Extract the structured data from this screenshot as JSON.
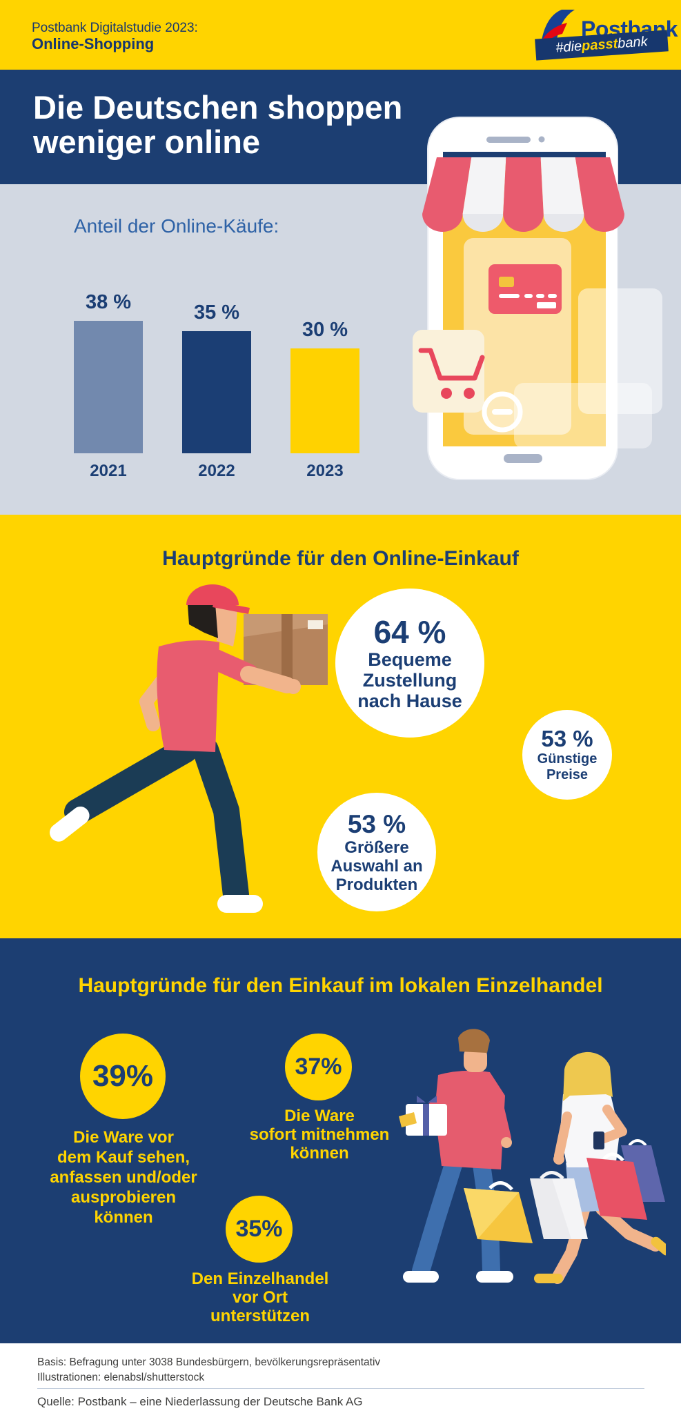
{
  "header": {
    "kicker": "Postbank Digitalstudie 2023:",
    "topic": "Online-Shopping",
    "brand": "Postbank",
    "hashtag_badge": {
      "pre": "#die",
      "highlight": "passt",
      "post": "bank"
    }
  },
  "hero": {
    "title": "Die Deutschen shoppen\nweniger online"
  },
  "chart_data": {
    "type": "bar",
    "title": "Anteil der Online-Käufe:",
    "categories": [
      "2021",
      "2022",
      "2023"
    ],
    "values": [
      38,
      35,
      30
    ],
    "value_labels": [
      "38 %",
      "35 %",
      "30 %"
    ],
    "unit": "%",
    "bar_colors": [
      "#7289AE",
      "#1B3E74",
      "#FFD200"
    ],
    "ylim": [
      0,
      40
    ],
    "grid": false,
    "legend": false
  },
  "online_reasons": {
    "heading": "Hauptgründe für den Online-Einkauf",
    "items": [
      {
        "value": "64 %",
        "label": "Bequeme\nZustellung\nnach Hause"
      },
      {
        "value": "53 %",
        "label": "Günstige\nPreise"
      },
      {
        "value": "53 %",
        "label": "Größere\nAuswahl an\nProdukten"
      }
    ]
  },
  "local_reasons": {
    "heading": "Hauptgründe für den Einkauf im lokalen Einzelhandel",
    "items": [
      {
        "value": "39%",
        "label": "Die Ware vor\ndem Kauf sehen,\nanfassen und/oder\nausprobieren\nkönnen"
      },
      {
        "value": "37%",
        "label": "Die Ware\nsofort mitnehmen\nkönnen"
      },
      {
        "value": "35%",
        "label": "Den Einzelhandel\nvor Ort\nunterstützen"
      }
    ]
  },
  "footer": {
    "basis": "Basis: Befragung unter 3038 Bundesbürgern, bevölkerungsrepräsentativ",
    "illustrations": "Illustrationen: elenabsl/shutterstock",
    "source": "Quelle: Postbank – eine Niederlassung der Deutsche Bank AG"
  },
  "colors": {
    "brand_yellow": "#FFD400",
    "brand_navy": "#1C3E72",
    "text_navy": "#1B3E74",
    "light_gray_blue": "#D2D8E2",
    "chart_label_blue": "#2E62A6",
    "accent_red": "#E8566B",
    "footer_text": "#3E3E3D",
    "logo_blue": "#164194",
    "logo_red": "#E30613"
  }
}
